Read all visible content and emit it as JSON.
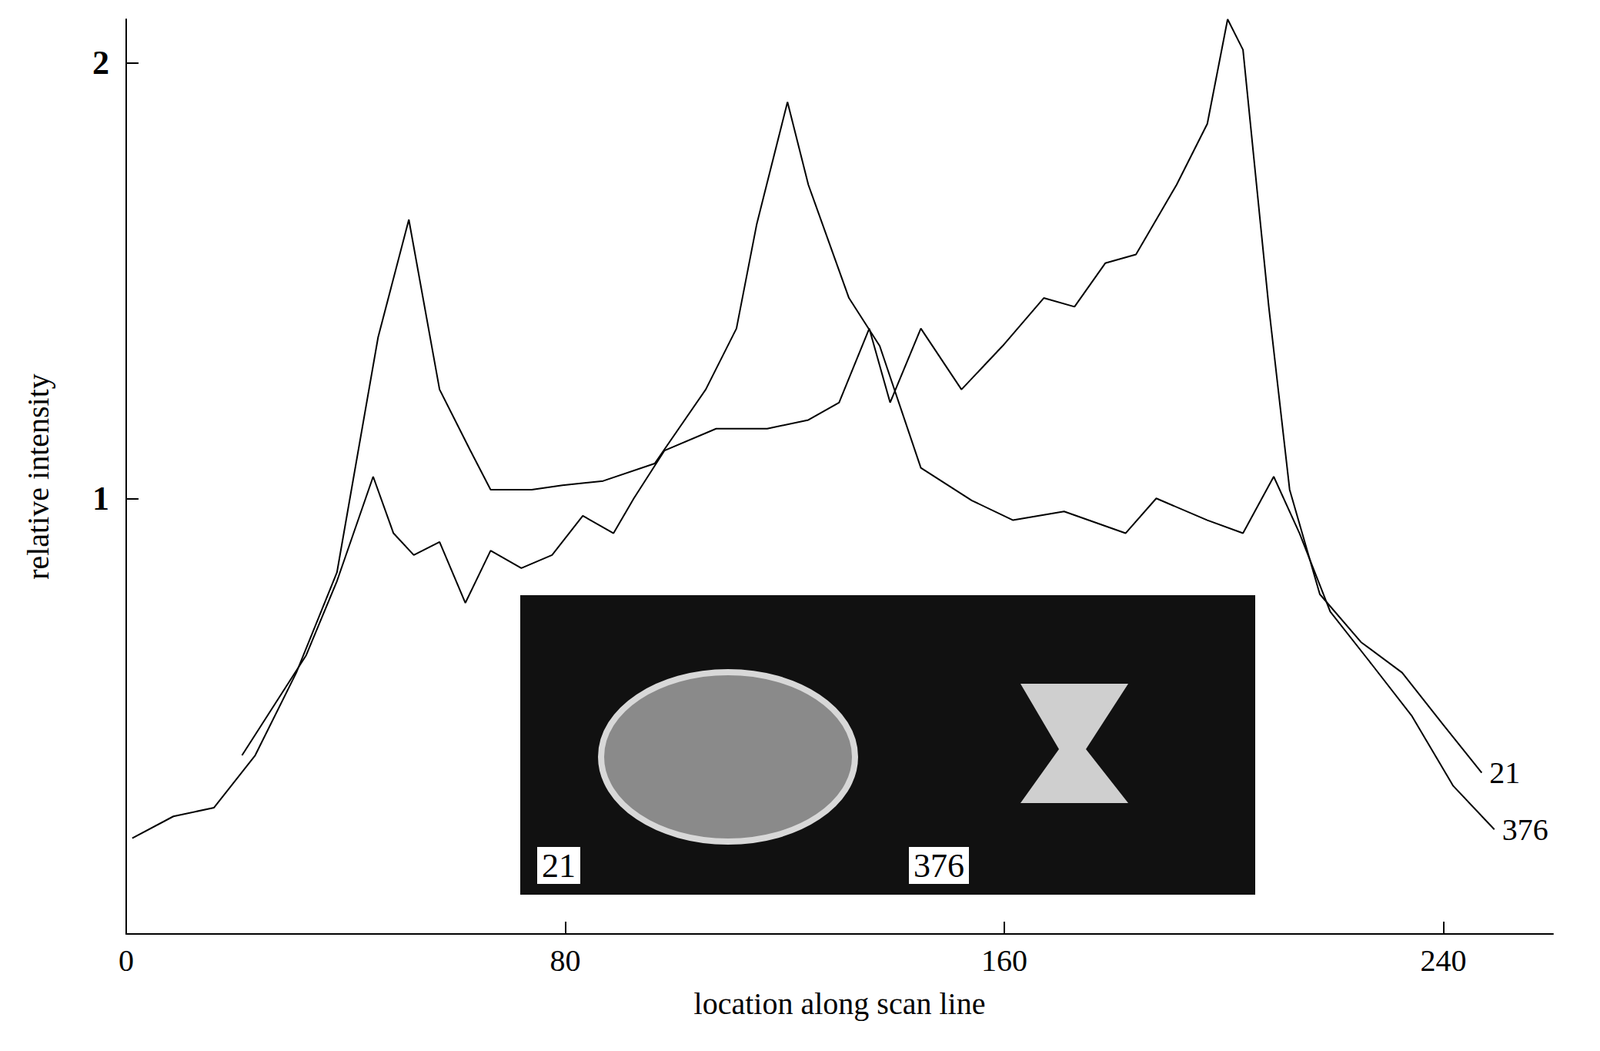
{
  "chart_data": {
    "type": "line",
    "x_label": "location along scan line",
    "y_label": "relative intensity",
    "xlim": [
      0,
      260
    ],
    "xticks": [
      0,
      80,
      160,
      240
    ],
    "ylim": [
      0,
      2.1
    ],
    "yticks": [
      1,
      2
    ],
    "grid": false,
    "marker": "none",
    "inset_labels": [
      "21",
      "376"
    ],
    "series": [
      {
        "name": "21",
        "color": "#000000",
        "x": [
          21.1,
          27.2,
          32.8,
          38.4,
          45,
          48.7,
          52.4,
          57.1,
          61.8,
          66.4,
          72,
          77.6,
          83.2,
          88.8,
          92.5,
          98.1,
          107.5,
          116.8,
          124.3,
          129.9,
          135.4,
          139.2,
          144.8,
          152.2,
          159.7,
          167.2,
          172.8,
          178.4,
          184,
          191.4,
          197,
          200.7,
          203.5,
          208.2,
          212,
          217.5,
          225,
          232.5,
          240,
          247
        ],
        "values": [
          0.41,
          0.53,
          0.64,
          0.81,
          1.05,
          0.92,
          0.87,
          0.9,
          0.76,
          0.88,
          0.84,
          0.87,
          0.96,
          0.92,
          1.0,
          1.11,
          1.16,
          1.16,
          1.18,
          1.22,
          1.39,
          1.22,
          1.39,
          1.25,
          1.35,
          1.46,
          1.44,
          1.54,
          1.56,
          1.72,
          1.86,
          2.1,
          2.03,
          1.44,
          1.02,
          0.78,
          0.67,
          0.6,
          0.48,
          0.37
        ]
      },
      {
        "name": "376",
        "color": "#000000",
        "x": [
          1.1,
          8.6,
          16,
          23.5,
          31,
          38.4,
          45.9,
          51.5,
          57.1,
          62.7,
          66.4,
          73.9,
          79.5,
          86.9,
          96.3,
          105.6,
          111.2,
          114.9,
          120.5,
          124.3,
          131.7,
          137.3,
          144.8,
          154.1,
          161.6,
          170.9,
          182.1,
          187.7,
          197,
          203.5,
          209.1,
          213.8,
          219.4,
          226.9,
          234.3,
          241.8,
          249.3
        ],
        "values": [
          0.22,
          0.27,
          0.29,
          0.41,
          0.6,
          0.83,
          1.37,
          1.64,
          1.25,
          1.11,
          1.02,
          1.02,
          1.03,
          1.04,
          1.08,
          1.25,
          1.39,
          1.63,
          1.91,
          1.72,
          1.46,
          1.35,
          1.07,
          0.995,
          0.95,
          0.97,
          0.92,
          1.0,
          0.95,
          0.92,
          1.05,
          0.92,
          0.74,
          0.62,
          0.5,
          0.34,
          0.24
        ]
      }
    ]
  }
}
